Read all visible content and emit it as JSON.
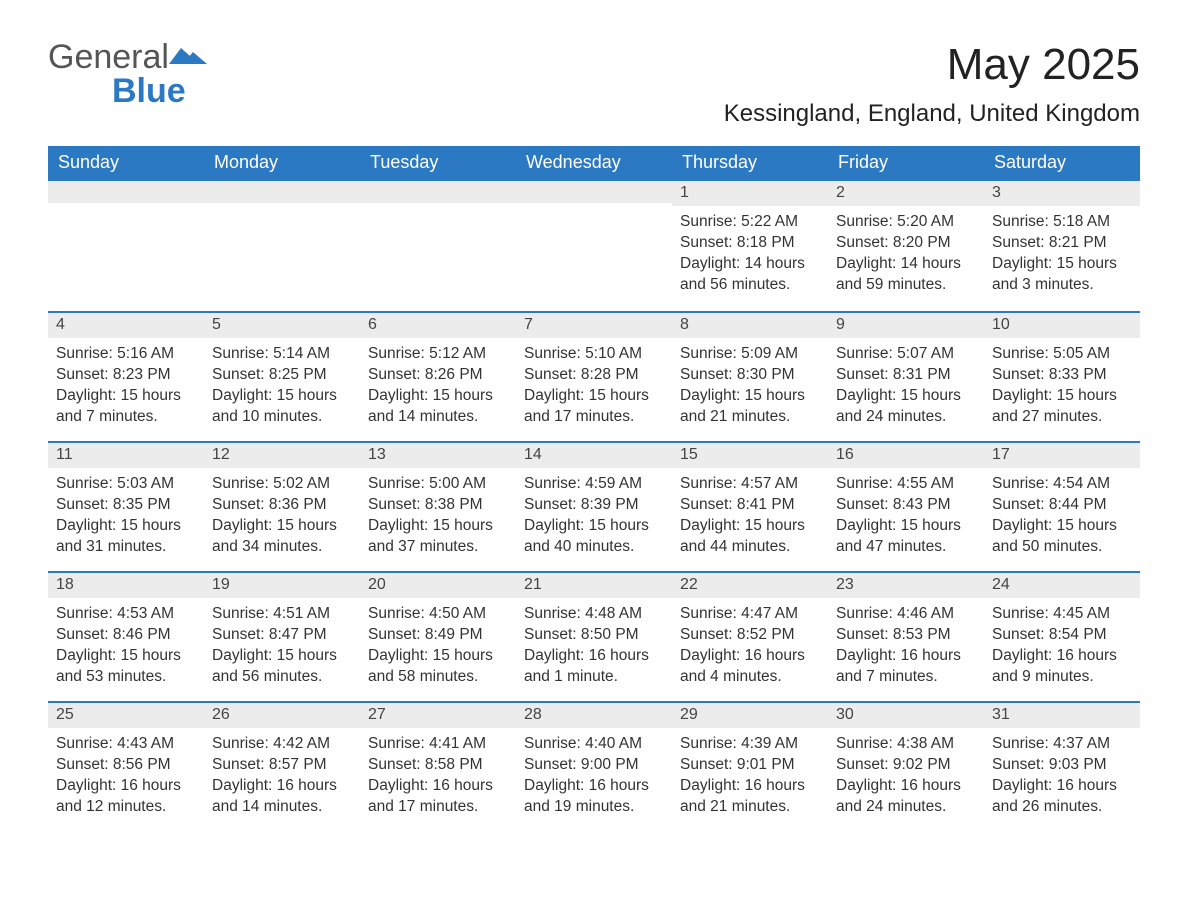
{
  "logo": {
    "word1": "General",
    "word2": "Blue",
    "color_gray": "#555555",
    "color_blue": "#2b79c2"
  },
  "header": {
    "title": "May 2025",
    "location": "Kessingland, England, United Kingdom"
  },
  "calendar": {
    "type": "table",
    "colors": {
      "header_bg": "#2b79c2",
      "header_text": "#ffffff",
      "daybar_bg": "#ececec",
      "daybar_border": "#2b79c2",
      "body_text": "#333333",
      "background": "#ffffff"
    },
    "columns": [
      "Sunday",
      "Monday",
      "Tuesday",
      "Wednesday",
      "Thursday",
      "Friday",
      "Saturday"
    ],
    "weeks": [
      [
        null,
        null,
        null,
        null,
        {
          "n": "1",
          "sunrise": "Sunrise: 5:22 AM",
          "sunset": "Sunset: 8:18 PM",
          "daylight": "Daylight: 14 hours and 56 minutes."
        },
        {
          "n": "2",
          "sunrise": "Sunrise: 5:20 AM",
          "sunset": "Sunset: 8:20 PM",
          "daylight": "Daylight: 14 hours and 59 minutes."
        },
        {
          "n": "3",
          "sunrise": "Sunrise: 5:18 AM",
          "sunset": "Sunset: 8:21 PM",
          "daylight": "Daylight: 15 hours and 3 minutes."
        }
      ],
      [
        {
          "n": "4",
          "sunrise": "Sunrise: 5:16 AM",
          "sunset": "Sunset: 8:23 PM",
          "daylight": "Daylight: 15 hours and 7 minutes."
        },
        {
          "n": "5",
          "sunrise": "Sunrise: 5:14 AM",
          "sunset": "Sunset: 8:25 PM",
          "daylight": "Daylight: 15 hours and 10 minutes."
        },
        {
          "n": "6",
          "sunrise": "Sunrise: 5:12 AM",
          "sunset": "Sunset: 8:26 PM",
          "daylight": "Daylight: 15 hours and 14 minutes."
        },
        {
          "n": "7",
          "sunrise": "Sunrise: 5:10 AM",
          "sunset": "Sunset: 8:28 PM",
          "daylight": "Daylight: 15 hours and 17 minutes."
        },
        {
          "n": "8",
          "sunrise": "Sunrise: 5:09 AM",
          "sunset": "Sunset: 8:30 PM",
          "daylight": "Daylight: 15 hours and 21 minutes."
        },
        {
          "n": "9",
          "sunrise": "Sunrise: 5:07 AM",
          "sunset": "Sunset: 8:31 PM",
          "daylight": "Daylight: 15 hours and 24 minutes."
        },
        {
          "n": "10",
          "sunrise": "Sunrise: 5:05 AM",
          "sunset": "Sunset: 8:33 PM",
          "daylight": "Daylight: 15 hours and 27 minutes."
        }
      ],
      [
        {
          "n": "11",
          "sunrise": "Sunrise: 5:03 AM",
          "sunset": "Sunset: 8:35 PM",
          "daylight": "Daylight: 15 hours and 31 minutes."
        },
        {
          "n": "12",
          "sunrise": "Sunrise: 5:02 AM",
          "sunset": "Sunset: 8:36 PM",
          "daylight": "Daylight: 15 hours and 34 minutes."
        },
        {
          "n": "13",
          "sunrise": "Sunrise: 5:00 AM",
          "sunset": "Sunset: 8:38 PM",
          "daylight": "Daylight: 15 hours and 37 minutes."
        },
        {
          "n": "14",
          "sunrise": "Sunrise: 4:59 AM",
          "sunset": "Sunset: 8:39 PM",
          "daylight": "Daylight: 15 hours and 40 minutes."
        },
        {
          "n": "15",
          "sunrise": "Sunrise: 4:57 AM",
          "sunset": "Sunset: 8:41 PM",
          "daylight": "Daylight: 15 hours and 44 minutes."
        },
        {
          "n": "16",
          "sunrise": "Sunrise: 4:55 AM",
          "sunset": "Sunset: 8:43 PM",
          "daylight": "Daylight: 15 hours and 47 minutes."
        },
        {
          "n": "17",
          "sunrise": "Sunrise: 4:54 AM",
          "sunset": "Sunset: 8:44 PM",
          "daylight": "Daylight: 15 hours and 50 minutes."
        }
      ],
      [
        {
          "n": "18",
          "sunrise": "Sunrise: 4:53 AM",
          "sunset": "Sunset: 8:46 PM",
          "daylight": "Daylight: 15 hours and 53 minutes."
        },
        {
          "n": "19",
          "sunrise": "Sunrise: 4:51 AM",
          "sunset": "Sunset: 8:47 PM",
          "daylight": "Daylight: 15 hours and 56 minutes."
        },
        {
          "n": "20",
          "sunrise": "Sunrise: 4:50 AM",
          "sunset": "Sunset: 8:49 PM",
          "daylight": "Daylight: 15 hours and 58 minutes."
        },
        {
          "n": "21",
          "sunrise": "Sunrise: 4:48 AM",
          "sunset": "Sunset: 8:50 PM",
          "daylight": "Daylight: 16 hours and 1 minute."
        },
        {
          "n": "22",
          "sunrise": "Sunrise: 4:47 AM",
          "sunset": "Sunset: 8:52 PM",
          "daylight": "Daylight: 16 hours and 4 minutes."
        },
        {
          "n": "23",
          "sunrise": "Sunrise: 4:46 AM",
          "sunset": "Sunset: 8:53 PM",
          "daylight": "Daylight: 16 hours and 7 minutes."
        },
        {
          "n": "24",
          "sunrise": "Sunrise: 4:45 AM",
          "sunset": "Sunset: 8:54 PM",
          "daylight": "Daylight: 16 hours and 9 minutes."
        }
      ],
      [
        {
          "n": "25",
          "sunrise": "Sunrise: 4:43 AM",
          "sunset": "Sunset: 8:56 PM",
          "daylight": "Daylight: 16 hours and 12 minutes."
        },
        {
          "n": "26",
          "sunrise": "Sunrise: 4:42 AM",
          "sunset": "Sunset: 8:57 PM",
          "daylight": "Daylight: 16 hours and 14 minutes."
        },
        {
          "n": "27",
          "sunrise": "Sunrise: 4:41 AM",
          "sunset": "Sunset: 8:58 PM",
          "daylight": "Daylight: 16 hours and 17 minutes."
        },
        {
          "n": "28",
          "sunrise": "Sunrise: 4:40 AM",
          "sunset": "Sunset: 9:00 PM",
          "daylight": "Daylight: 16 hours and 19 minutes."
        },
        {
          "n": "29",
          "sunrise": "Sunrise: 4:39 AM",
          "sunset": "Sunset: 9:01 PM",
          "daylight": "Daylight: 16 hours and 21 minutes."
        },
        {
          "n": "30",
          "sunrise": "Sunrise: 4:38 AM",
          "sunset": "Sunset: 9:02 PM",
          "daylight": "Daylight: 16 hours and 24 minutes."
        },
        {
          "n": "31",
          "sunrise": "Sunrise: 4:37 AM",
          "sunset": "Sunset: 9:03 PM",
          "daylight": "Daylight: 16 hours and 26 minutes."
        }
      ]
    ]
  }
}
